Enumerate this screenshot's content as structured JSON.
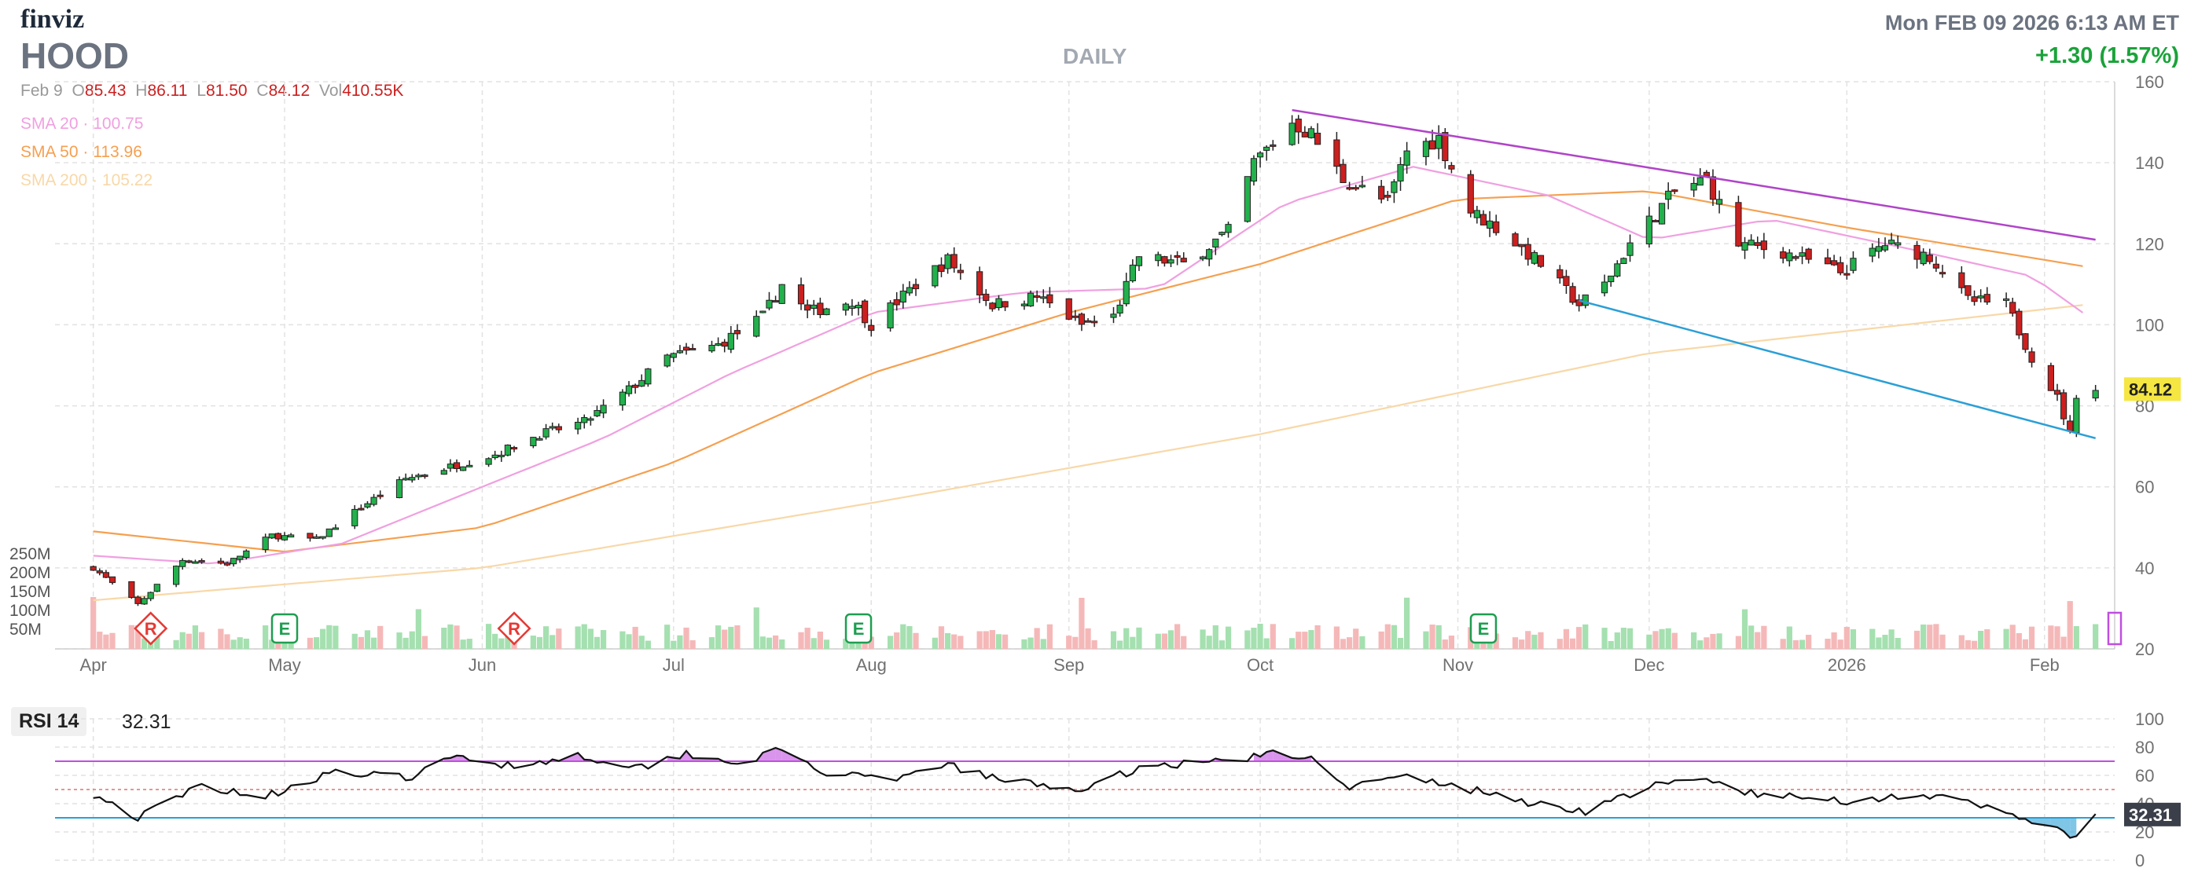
{
  "header": {
    "brand": "finviz",
    "ticker": "HOOD",
    "timeframe": "DAILY",
    "datetime": "Mon FEB 09 2026 6:13 AM ET",
    "change": "+1.30 (1.57%)"
  },
  "ohlc": {
    "date": "Feb 9",
    "o_label": "O",
    "o": "85.43",
    "h_label": "H",
    "h": "86.11",
    "l_label": "L",
    "l": "81.50",
    "c_label": "C",
    "c": "84.12",
    "vol_label": "Vol",
    "vol": "410.55K"
  },
  "legend": [
    {
      "name": "SMA 20",
      "value": "100.75",
      "color": "#f0a0e0"
    },
    {
      "name": "SMA 50",
      "value": "113.96",
      "color": "#f5a050"
    },
    {
      "name": "SMA 200",
      "value": "105.22",
      "color": "#f8d8a8"
    }
  ],
  "rsi_panel": {
    "label": "RSI 14",
    "value": "32.31"
  },
  "colors": {
    "up": "#22b14c",
    "down": "#cc1f1f",
    "grid": "#dddddd",
    "trend_upper": "#b044c8",
    "trend_lower": "#2a9fd6",
    "price_tag": "#f5e642",
    "rsi_tag": "#3b3f4a",
    "vol_up": "#a5e0b0",
    "vol_down": "#f5b8b8",
    "event_r": "#e53935",
    "event_e": "#1e9e50"
  },
  "chart_data": [
    {
      "type": "candlestick",
      "ticker": "HOOD",
      "x_ticks": [
        "Apr",
        "May",
        "Jun",
        "Jul",
        "Aug",
        "Sep",
        "Oct",
        "Nov",
        "Dec",
        "2026",
        "Feb"
      ],
      "y_ticks": [
        20,
        40,
        60,
        80,
        100,
        120,
        140,
        160
      ],
      "ylim": [
        20,
        160
      ],
      "volume_ticks": [
        "50M",
        "100M",
        "150M",
        "200M",
        "250M"
      ],
      "last_price": 84.12,
      "close_path": [
        {
          "date": "2025-04-01",
          "close": 40
        },
        {
          "date": "2025-04-08",
          "close": 31
        },
        {
          "date": "2025-04-15",
          "close": 42
        },
        {
          "date": "2025-04-22",
          "close": 41
        },
        {
          "date": "2025-04-29",
          "close": 48
        },
        {
          "date": "2025-05-06",
          "close": 47
        },
        {
          "date": "2025-05-13",
          "close": 55
        },
        {
          "date": "2025-05-20",
          "close": 62
        },
        {
          "date": "2025-05-27",
          "close": 65
        },
        {
          "date": "2025-06-03",
          "close": 68
        },
        {
          "date": "2025-06-10",
          "close": 73
        },
        {
          "date": "2025-06-17",
          "close": 76
        },
        {
          "date": "2025-06-24",
          "close": 84
        },
        {
          "date": "2025-06-30",
          "close": 92
        },
        {
          "date": "2025-07-08",
          "close": 95
        },
        {
          "date": "2025-07-15",
          "close": 102
        },
        {
          "date": "2025-07-18",
          "close": 110
        },
        {
          "date": "2025-07-22",
          "close": 103
        },
        {
          "date": "2025-07-29",
          "close": 106
        },
        {
          "date": "2025-08-01",
          "close": 100
        },
        {
          "date": "2025-08-08",
          "close": 110
        },
        {
          "date": "2025-08-13",
          "close": 116
        },
        {
          "date": "2025-08-20",
          "close": 105
        },
        {
          "date": "2025-08-27",
          "close": 107
        },
        {
          "date": "2025-09-03",
          "close": 100
        },
        {
          "date": "2025-09-08",
          "close": 102
        },
        {
          "date": "2025-09-12",
          "close": 117
        },
        {
          "date": "2025-09-19",
          "close": 115
        },
        {
          "date": "2025-09-26",
          "close": 123
        },
        {
          "date": "2025-09-30",
          "close": 140
        },
        {
          "date": "2025-10-06",
          "close": 150
        },
        {
          "date": "2025-10-09",
          "close": 147
        },
        {
          "date": "2025-10-14",
          "close": 136
        },
        {
          "date": "2025-10-21",
          "close": 130
        },
        {
          "date": "2025-10-24",
          "close": 143
        },
        {
          "date": "2025-10-29",
          "close": 146
        },
        {
          "date": "2025-11-03",
          "close": 128
        },
        {
          "date": "2025-11-07",
          "close": 124
        },
        {
          "date": "2025-11-14",
          "close": 115
        },
        {
          "date": "2025-11-20",
          "close": 105
        },
        {
          "date": "2025-11-24",
          "close": 110
        },
        {
          "date": "2025-11-28",
          "close": 120
        },
        {
          "date": "2025-12-05",
          "close": 133
        },
        {
          "date": "2025-12-10",
          "close": 136
        },
        {
          "date": "2025-12-15",
          "close": 120
        },
        {
          "date": "2025-12-22",
          "close": 118
        },
        {
          "date": "2025-12-31",
          "close": 113
        },
        {
          "date": "2026-01-07",
          "close": 120
        },
        {
          "date": "2026-01-14",
          "close": 117
        },
        {
          "date": "2026-01-20",
          "close": 106
        },
        {
          "date": "2026-01-26",
          "close": 105
        },
        {
          "date": "2026-01-30",
          "close": 92
        },
        {
          "date": "2026-02-03",
          "close": 82
        },
        {
          "date": "2026-02-05",
          "close": 73
        },
        {
          "date": "2026-02-06",
          "close": 83
        },
        {
          "date": "2026-02-09",
          "close": 84.12
        }
      ],
      "sma20": [
        {
          "date": "2025-04-01",
          "value": 43
        },
        {
          "date": "2025-04-20",
          "value": 41
        },
        {
          "date": "2025-05-10",
          "value": 46
        },
        {
          "date": "2025-06-01",
          "value": 60
        },
        {
          "date": "2025-06-20",
          "value": 72
        },
        {
          "date": "2025-07-10",
          "value": 88
        },
        {
          "date": "2025-08-01",
          "value": 103
        },
        {
          "date": "2025-08-25",
          "value": 108
        },
        {
          "date": "2025-09-15",
          "value": 109
        },
        {
          "date": "2025-10-05",
          "value": 130
        },
        {
          "date": "2025-10-25",
          "value": 139
        },
        {
          "date": "2025-11-15",
          "value": 132
        },
        {
          "date": "2025-12-01",
          "value": 121
        },
        {
          "date": "2025-12-20",
          "value": 126
        },
        {
          "date": "2026-01-10",
          "value": 119
        },
        {
          "date": "2026-01-30",
          "value": 112
        },
        {
          "date": "2026-02-09",
          "value": 100.75
        }
      ],
      "sma50": [
        {
          "date": "2025-04-01",
          "value": 49
        },
        {
          "date": "2025-05-01",
          "value": 44
        },
        {
          "date": "2025-06-01",
          "value": 50
        },
        {
          "date": "2025-07-01",
          "value": 66
        },
        {
          "date": "2025-08-01",
          "value": 88
        },
        {
          "date": "2025-09-01",
          "value": 103
        },
        {
          "date": "2025-10-01",
          "value": 115
        },
        {
          "date": "2025-11-01",
          "value": 131
        },
        {
          "date": "2025-12-01",
          "value": 133
        },
        {
          "date": "2026-01-01",
          "value": 124
        },
        {
          "date": "2026-02-09",
          "value": 113.96
        }
      ],
      "sma200": [
        {
          "date": "2025-04-01",
          "value": 32
        },
        {
          "date": "2025-06-01",
          "value": 40
        },
        {
          "date": "2025-08-01",
          "value": 56
        },
        {
          "date": "2025-10-01",
          "value": 73
        },
        {
          "date": "2025-12-01",
          "value": 93
        },
        {
          "date": "2026-02-09",
          "value": 105.22
        }
      ],
      "trendlines": [
        {
          "from": {
            "date": "2025-10-06",
            "value": 153
          },
          "to": {
            "date": "2026-02-09",
            "value": 121
          }
        },
        {
          "from": {
            "date": "2025-11-20",
            "value": 106
          },
          "to": {
            "date": "2026-02-09",
            "value": 72
          }
        }
      ],
      "events": [
        {
          "date": "2025-04-10",
          "label": "R"
        },
        {
          "date": "2025-05-01",
          "label": "E"
        },
        {
          "date": "2025-06-06",
          "label": "R"
        },
        {
          "date": "2025-07-30",
          "label": "E"
        },
        {
          "date": "2025-11-05",
          "label": "E"
        }
      ]
    },
    {
      "type": "line",
      "name": "RSI 14",
      "y_ticks": [
        0,
        20,
        40,
        60,
        80,
        100
      ],
      "ylim": [
        0,
        100
      ],
      "overbought": 70,
      "oversold": 30,
      "last_value": 32.31,
      "points": [
        {
          "date": "2025-04-01",
          "value": 47
        },
        {
          "date": "2025-04-08",
          "value": 30
        },
        {
          "date": "2025-04-18",
          "value": 53
        },
        {
          "date": "2025-04-28",
          "value": 45
        },
        {
          "date": "2025-05-08",
          "value": 62
        },
        {
          "date": "2025-05-20",
          "value": 58
        },
        {
          "date": "2025-05-28",
          "value": 73
        },
        {
          "date": "2025-06-06",
          "value": 67
        },
        {
          "date": "2025-06-16",
          "value": 74
        },
        {
          "date": "2025-06-26",
          "value": 66
        },
        {
          "date": "2025-07-03",
          "value": 76
        },
        {
          "date": "2025-07-11",
          "value": 69
        },
        {
          "date": "2025-07-18",
          "value": 78
        },
        {
          "date": "2025-07-24",
          "value": 63
        },
        {
          "date": "2025-08-04",
          "value": 55
        },
        {
          "date": "2025-08-12",
          "value": 68
        },
        {
          "date": "2025-08-22",
          "value": 56
        },
        {
          "date": "2025-09-04",
          "value": 50
        },
        {
          "date": "2025-09-12",
          "value": 66
        },
        {
          "date": "2025-09-24",
          "value": 70
        },
        {
          "date": "2025-10-03",
          "value": 75
        },
        {
          "date": "2025-10-10",
          "value": 71
        },
        {
          "date": "2025-10-15",
          "value": 52
        },
        {
          "date": "2025-10-24",
          "value": 59
        },
        {
          "date": "2025-11-04",
          "value": 49
        },
        {
          "date": "2025-11-13",
          "value": 40
        },
        {
          "date": "2025-11-21",
          "value": 35
        },
        {
          "date": "2025-12-01",
          "value": 52
        },
        {
          "date": "2025-12-10",
          "value": 57
        },
        {
          "date": "2025-12-18",
          "value": 46
        },
        {
          "date": "2026-01-02",
          "value": 42
        },
        {
          "date": "2026-01-12",
          "value": 47
        },
        {
          "date": "2026-01-22",
          "value": 38
        },
        {
          "date": "2026-02-02",
          "value": 25
        },
        {
          "date": "2026-02-05",
          "value": 14
        },
        {
          "date": "2026-02-09",
          "value": 32.31
        }
      ]
    }
  ]
}
